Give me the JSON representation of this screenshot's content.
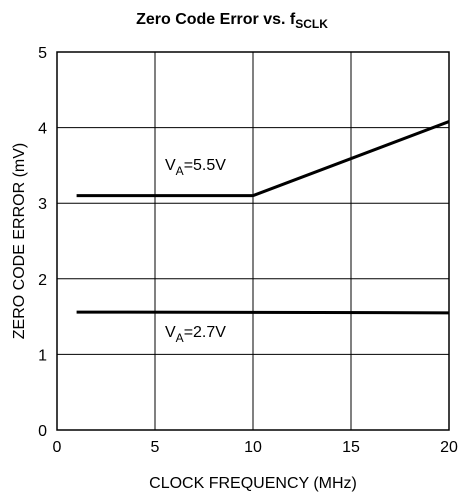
{
  "chart_data": {
    "type": "line",
    "title": {
      "text": "Zero Code Error vs. f",
      "subscript": "SCLK"
    },
    "x_label": "CLOCK FREQUENCY (MHz)",
    "y_label": "ZERO CODE ERROR (mV)",
    "xlim": [
      0,
      20
    ],
    "xticks": [
      0,
      5,
      10,
      15,
      20
    ],
    "ylim": [
      0,
      5
    ],
    "yticks": [
      0,
      1,
      2,
      3,
      4,
      5
    ],
    "grid": true,
    "series": [
      {
        "label": {
          "text": "V",
          "subscript": "A",
          "rest": "=5.5V"
        },
        "color": "#000000",
        "x": [
          1,
          10,
          20
        ],
        "values": [
          3.1,
          3.1,
          4.08
        ]
      },
      {
        "label": {
          "text": "V",
          "subscript": "A",
          "rest": "=2.7V"
        },
        "color": "#000000",
        "x": [
          1,
          20
        ],
        "values": [
          1.56,
          1.55
        ]
      }
    ]
  }
}
